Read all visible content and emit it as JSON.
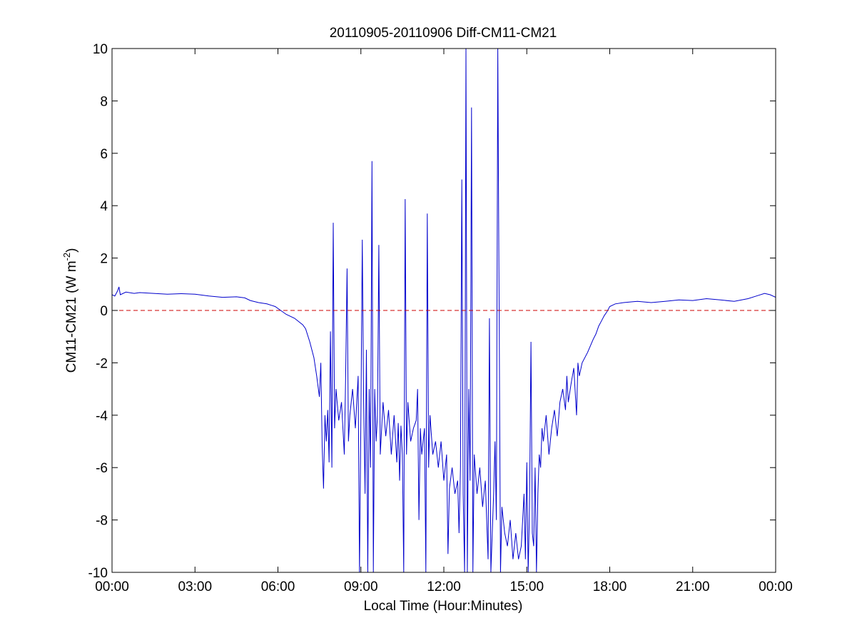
{
  "chart_data": {
    "type": "line",
    "title": "20110905-20110906 Diff-CM11-CM21",
    "xlabel": "Local Time (Hour:Minutes)",
    "ylabel": {
      "prefix": "CM11-CM21 (W m",
      "superscript": "-2",
      "suffix": ")"
    },
    "x_range_hours": [
      0,
      24
    ],
    "ylim": [
      -10,
      10
    ],
    "xticks": [
      {
        "hour": 0,
        "label": "00:00"
      },
      {
        "hour": 3,
        "label": "03:00"
      },
      {
        "hour": 6,
        "label": "06:00"
      },
      {
        "hour": 9,
        "label": "09:00"
      },
      {
        "hour": 12,
        "label": "12:00"
      },
      {
        "hour": 15,
        "label": "15:00"
      },
      {
        "hour": 18,
        "label": "18:00"
      },
      {
        "hour": 21,
        "label": "21:00"
      },
      {
        "hour": 24,
        "label": "00:00"
      }
    ],
    "yticks": [
      {
        "value": -10,
        "label": "-10"
      },
      {
        "value": -8,
        "label": "-8"
      },
      {
        "value": -6,
        "label": "-6"
      },
      {
        "value": -4,
        "label": "-4"
      },
      {
        "value": -2,
        "label": "-2"
      },
      {
        "value": 0,
        "label": "0"
      },
      {
        "value": 2,
        "label": "2"
      },
      {
        "value": 4,
        "label": "4"
      },
      {
        "value": 6,
        "label": "6"
      },
      {
        "value": 8,
        "label": "8"
      },
      {
        "value": 10,
        "label": "10"
      }
    ],
    "grid": false,
    "series": [
      {
        "color": "#0000cc",
        "style": "solid",
        "points": [
          [
            0.0,
            0.6
          ],
          [
            0.1,
            0.55
          ],
          [
            0.2,
            0.75
          ],
          [
            0.25,
            0.9
          ],
          [
            0.3,
            0.6
          ],
          [
            0.5,
            0.7
          ],
          [
            0.8,
            0.65
          ],
          [
            1.0,
            0.68
          ],
          [
            1.5,
            0.65
          ],
          [
            2.0,
            0.62
          ],
          [
            2.5,
            0.64
          ],
          [
            3.0,
            0.62
          ],
          [
            3.5,
            0.55
          ],
          [
            4.0,
            0.5
          ],
          [
            4.5,
            0.52
          ],
          [
            4.8,
            0.48
          ],
          [
            5.0,
            0.38
          ],
          [
            5.3,
            0.3
          ],
          [
            5.6,
            0.25
          ],
          [
            5.9,
            0.15
          ],
          [
            6.1,
            0.0
          ],
          [
            6.3,
            -0.15
          ],
          [
            6.6,
            -0.3
          ],
          [
            6.9,
            -0.55
          ],
          [
            7.0,
            -0.7
          ],
          [
            7.15,
            -1.2
          ],
          [
            7.3,
            -1.8
          ],
          [
            7.4,
            -2.5
          ],
          [
            7.5,
            -3.3
          ],
          [
            7.55,
            -2.0
          ],
          [
            7.6,
            -5.2
          ],
          [
            7.65,
            -6.8
          ],
          [
            7.7,
            -4.0
          ],
          [
            7.75,
            -5.0
          ],
          [
            7.8,
            -3.8
          ],
          [
            7.85,
            -5.8
          ],
          [
            7.9,
            -0.8
          ],
          [
            7.95,
            -6.0
          ],
          [
            8.0,
            3.35
          ],
          [
            8.05,
            -4.5
          ],
          [
            8.1,
            -3.0
          ],
          [
            8.2,
            -4.2
          ],
          [
            8.3,
            -3.5
          ],
          [
            8.4,
            -5.5
          ],
          [
            8.45,
            -2.5
          ],
          [
            8.5,
            1.6
          ],
          [
            8.55,
            -5.0
          ],
          [
            8.6,
            -4.0
          ],
          [
            8.7,
            -3.0
          ],
          [
            8.8,
            -4.5
          ],
          [
            8.9,
            -2.5
          ],
          [
            8.95,
            -10.0
          ],
          [
            9.0,
            -4.0
          ],
          [
            9.05,
            2.7
          ],
          [
            9.1,
            -3.5
          ],
          [
            9.15,
            -7.0
          ],
          [
            9.2,
            -1.5
          ],
          [
            9.25,
            -10.0
          ],
          [
            9.3,
            -3.0
          ],
          [
            9.35,
            -6.0
          ],
          [
            9.4,
            5.7
          ],
          [
            9.45,
            -10.0
          ],
          [
            9.5,
            -3.0
          ],
          [
            9.55,
            -5.0
          ],
          [
            9.6,
            -4.0
          ],
          [
            9.65,
            2.5
          ],
          [
            9.7,
            -5.5
          ],
          [
            9.8,
            -3.5
          ],
          [
            9.9,
            -4.8
          ],
          [
            10.0,
            -3.8
          ],
          [
            10.1,
            -5.5
          ],
          [
            10.2,
            -4.0
          ],
          [
            10.3,
            -5.8
          ],
          [
            10.35,
            -4.3
          ],
          [
            10.4,
            -6.5
          ],
          [
            10.45,
            -4.4
          ],
          [
            10.5,
            -5.5
          ],
          [
            10.55,
            -10.0
          ],
          [
            10.6,
            4.25
          ],
          [
            10.65,
            -5.5
          ],
          [
            10.7,
            -3.5
          ],
          [
            10.8,
            -5.0
          ],
          [
            10.9,
            -4.5
          ],
          [
            11.0,
            -4.2
          ],
          [
            11.05,
            -3.0
          ],
          [
            11.1,
            -8.0
          ],
          [
            11.15,
            -4.5
          ],
          [
            11.2,
            -5.5
          ],
          [
            11.3,
            -4.5
          ],
          [
            11.35,
            -10.0
          ],
          [
            11.4,
            3.7
          ],
          [
            11.45,
            -6.0
          ],
          [
            11.5,
            -4.0
          ],
          [
            11.6,
            -5.5
          ],
          [
            11.7,
            -5.0
          ],
          [
            11.8,
            -6.0
          ],
          [
            11.9,
            -5.0
          ],
          [
            12.0,
            -6.5
          ],
          [
            12.1,
            -5.5
          ],
          [
            12.15,
            -9.3
          ],
          [
            12.2,
            -6.8
          ],
          [
            12.3,
            -6.0
          ],
          [
            12.4,
            -7.0
          ],
          [
            12.5,
            -6.5
          ],
          [
            12.55,
            -8.5
          ],
          [
            12.6,
            -6.0
          ],
          [
            12.65,
            5.0
          ],
          [
            12.7,
            -7.0
          ],
          [
            12.75,
            -10.0
          ],
          [
            12.8,
            10.0
          ],
          [
            12.85,
            -10.0
          ],
          [
            12.9,
            -3.0
          ],
          [
            12.95,
            -6.5
          ],
          [
            13.0,
            7.75
          ],
          [
            13.05,
            -10.0
          ],
          [
            13.1,
            -5.5
          ],
          [
            13.2,
            -7.0
          ],
          [
            13.3,
            -6.0
          ],
          [
            13.4,
            -7.5
          ],
          [
            13.5,
            -6.5
          ],
          [
            13.6,
            -9.5
          ],
          [
            13.65,
            -0.3
          ],
          [
            13.7,
            -10.0
          ],
          [
            13.8,
            -7.0
          ],
          [
            13.85,
            -5.0
          ],
          [
            13.9,
            -8.0
          ],
          [
            13.95,
            10.0
          ],
          [
            14.05,
            -10.0
          ],
          [
            14.1,
            -7.5
          ],
          [
            14.2,
            -8.5
          ],
          [
            14.3,
            -9.0
          ],
          [
            14.4,
            -8.0
          ],
          [
            14.5,
            -9.5
          ],
          [
            14.6,
            -8.5
          ],
          [
            14.7,
            -9.5
          ],
          [
            14.8,
            -9.0
          ],
          [
            14.9,
            -7.0
          ],
          [
            14.95,
            -9.5
          ],
          [
            15.0,
            -5.8
          ],
          [
            15.05,
            -10.0
          ],
          [
            15.1,
            -7.5
          ],
          [
            15.15,
            -1.2
          ],
          [
            15.2,
            -8.5
          ],
          [
            15.25,
            -9.0
          ],
          [
            15.3,
            -6.0
          ],
          [
            15.35,
            -10.0
          ],
          [
            15.4,
            -7.0
          ],
          [
            15.45,
            -5.5
          ],
          [
            15.5,
            -6.0
          ],
          [
            15.55,
            -4.5
          ],
          [
            15.6,
            -5.0
          ],
          [
            15.7,
            -4.0
          ],
          [
            15.8,
            -5.5
          ],
          [
            15.9,
            -4.5
          ],
          [
            16.0,
            -3.8
          ],
          [
            16.1,
            -4.8
          ],
          [
            16.2,
            -3.5
          ],
          [
            16.3,
            -3.0
          ],
          [
            16.4,
            -3.8
          ],
          [
            16.45,
            -2.5
          ],
          [
            16.5,
            -3.5
          ],
          [
            16.6,
            -2.8
          ],
          [
            16.7,
            -2.2
          ],
          [
            16.8,
            -4.0
          ],
          [
            16.85,
            -2.0
          ],
          [
            16.9,
            -2.5
          ],
          [
            17.0,
            -2.0
          ],
          [
            17.2,
            -1.6
          ],
          [
            17.4,
            -1.1
          ],
          [
            17.5,
            -0.9
          ],
          [
            17.6,
            -0.6
          ],
          [
            17.7,
            -0.4
          ],
          [
            17.8,
            -0.2
          ],
          [
            17.9,
            -0.05
          ],
          [
            18.0,
            0.15
          ],
          [
            18.2,
            0.25
          ],
          [
            18.5,
            0.3
          ],
          [
            19.0,
            0.35
          ],
          [
            19.5,
            0.3
          ],
          [
            20.0,
            0.35
          ],
          [
            20.5,
            0.4
          ],
          [
            21.0,
            0.38
          ],
          [
            21.5,
            0.45
          ],
          [
            22.0,
            0.4
          ],
          [
            22.5,
            0.35
          ],
          [
            23.0,
            0.45
          ],
          [
            23.3,
            0.55
          ],
          [
            23.6,
            0.65
          ],
          [
            23.8,
            0.6
          ],
          [
            24.0,
            0.5
          ]
        ]
      },
      {
        "color": "#cc0000",
        "style": "dashed",
        "points": [
          [
            0,
            0
          ],
          [
            24,
            0
          ]
        ]
      }
    ]
  }
}
